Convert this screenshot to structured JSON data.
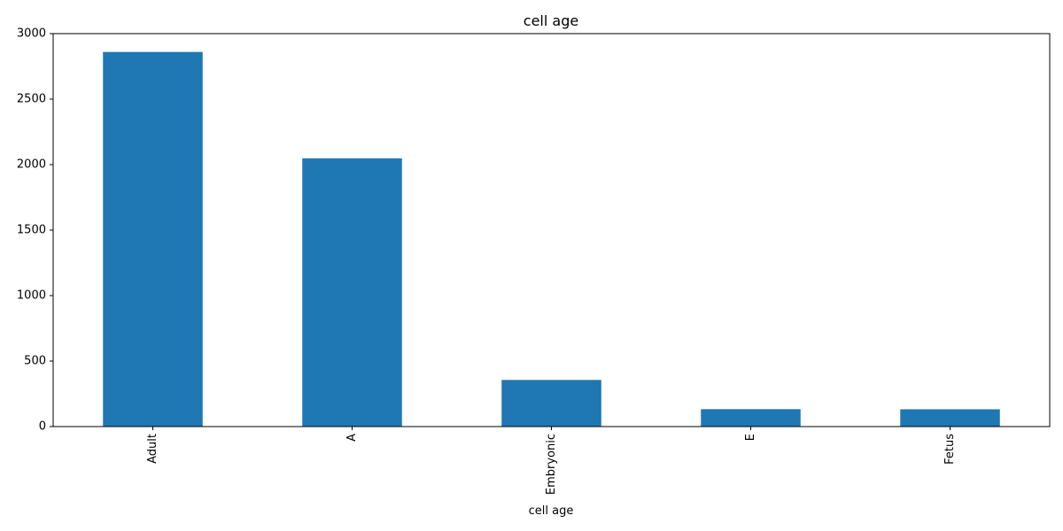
{
  "chart_data": {
    "type": "bar",
    "title": "cell age",
    "xlabel": "cell age",
    "ylabel": "",
    "categories": [
      "Adult",
      "A",
      "Embryonic",
      "E",
      "Fetus"
    ],
    "values": [
      2860,
      2048,
      356,
      133,
      132
    ],
    "ylim": [
      0,
      3000
    ],
    "yticks": [
      0,
      500,
      1000,
      1500,
      2000,
      2500,
      3000
    ],
    "bar_color": "#1f77b4",
    "grid": false,
    "legend": "none",
    "xtick_rotation": "vertical"
  }
}
